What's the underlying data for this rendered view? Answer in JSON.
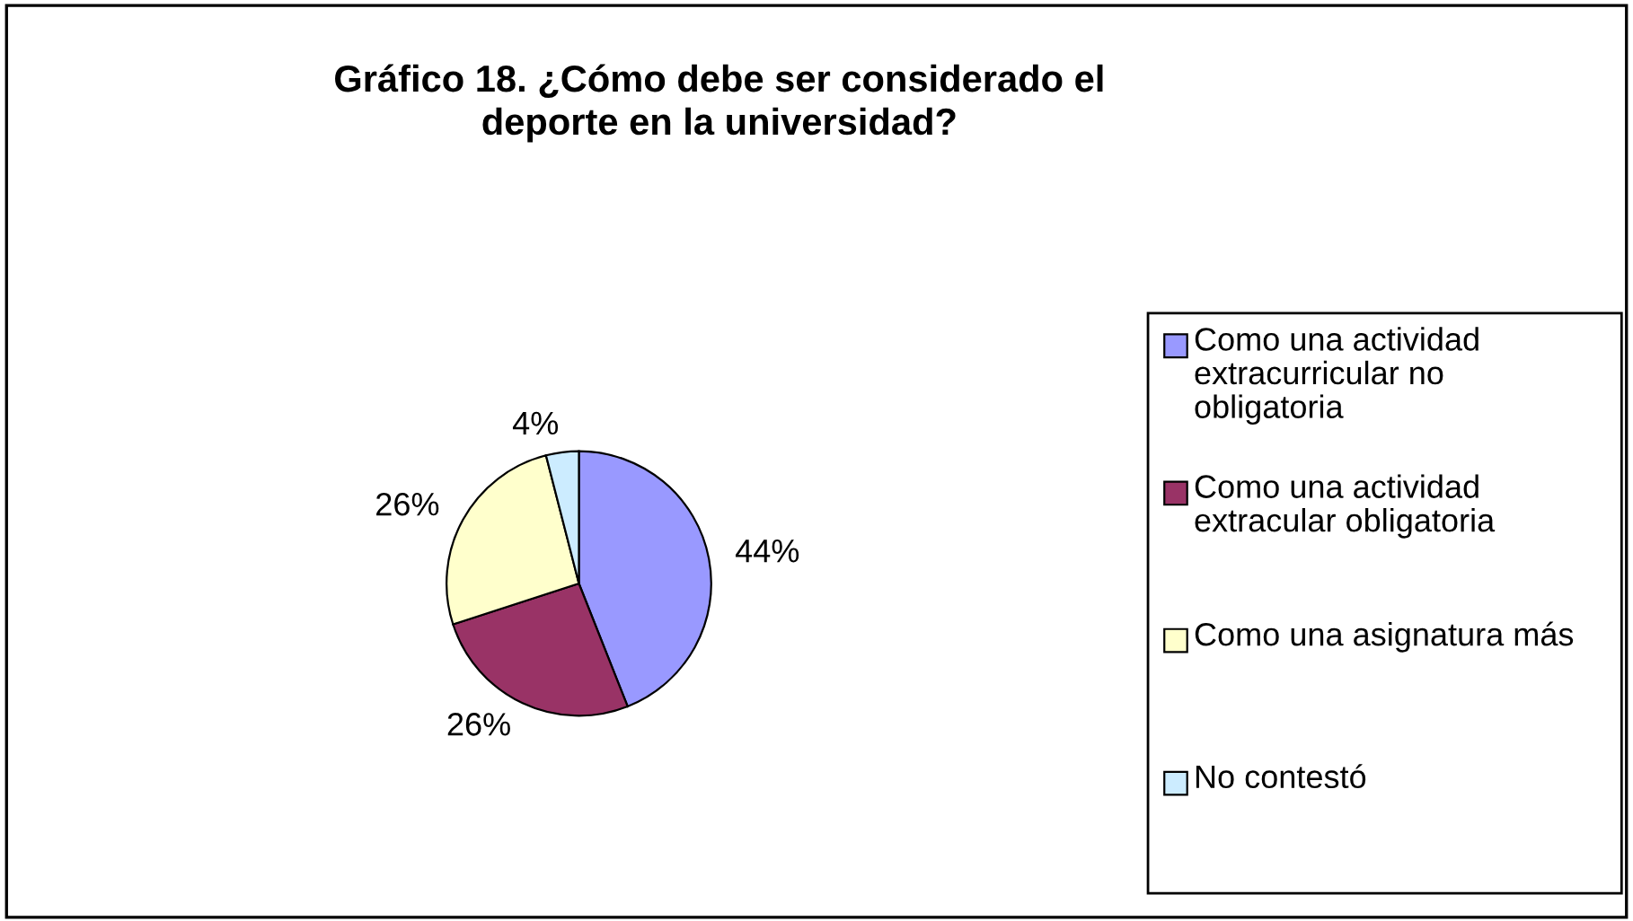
{
  "chart_data": {
    "type": "pie",
    "title": "Gráfico 18. ¿Cómo debe ser considerado el deporte en la universidad?",
    "categories": [
      "Como una actividad extracurricular no obligatoria",
      "Como una actividad extracular obligatoria",
      "Como una asignatura más",
      "No contestó"
    ],
    "values": [
      44,
      26,
      26,
      4
    ],
    "value_labels": [
      "44%",
      "26%",
      "26%",
      "4%"
    ],
    "colors": [
      "#9999ff",
      "#993366",
      "#ffffcc",
      "#ccecff"
    ],
    "legend": "right"
  }
}
